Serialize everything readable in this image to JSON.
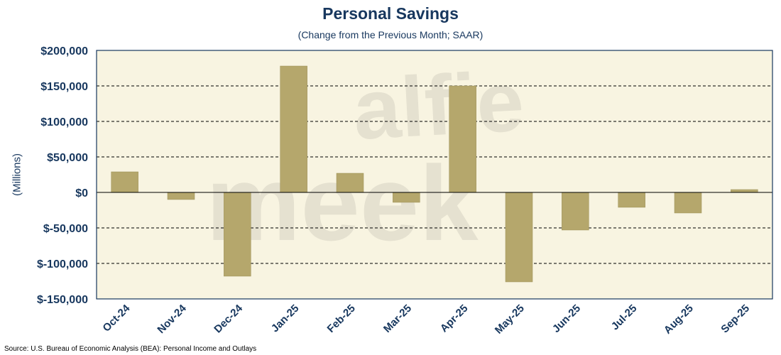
{
  "chart_data": {
    "type": "bar",
    "title": "Personal Savings",
    "subtitle": "(Change from the Previous Month; SAAR)",
    "ylabel": "(Millions)",
    "xlabel": "",
    "categories": [
      "Oct-24",
      "Nov-24",
      "Dec-24",
      "Jan-25",
      "Feb-25",
      "Mar-25",
      "Apr-25",
      "May-25",
      "Jun-25",
      "Jul-25",
      "Aug-25",
      "Sep-25"
    ],
    "values": [
      29000,
      -10000,
      -118000,
      178000,
      27000,
      -14000,
      150000,
      -126000,
      -53000,
      -21000,
      -29000,
      4000
    ],
    "ylim": [
      -150000,
      200000
    ],
    "yticks": [
      200000,
      150000,
      100000,
      50000,
      0,
      -50000,
      -100000,
      -150000
    ],
    "ytick_labels": [
      "$200,000",
      "$150,000",
      "$100,000",
      "$50,000",
      "$0",
      "$-50,000",
      "$-100,000",
      "$-150,000"
    ],
    "grid": true,
    "colors": {
      "bar": "#b5a76c",
      "plot_background": "#f8f4e1",
      "border": "#17375e",
      "text": "#17375e"
    },
    "watermark": [
      "alfie",
      "meek"
    ]
  },
  "source": "Source: U.S. Bureau of Economic Analysis (BEA): Personal Income and Outlays"
}
